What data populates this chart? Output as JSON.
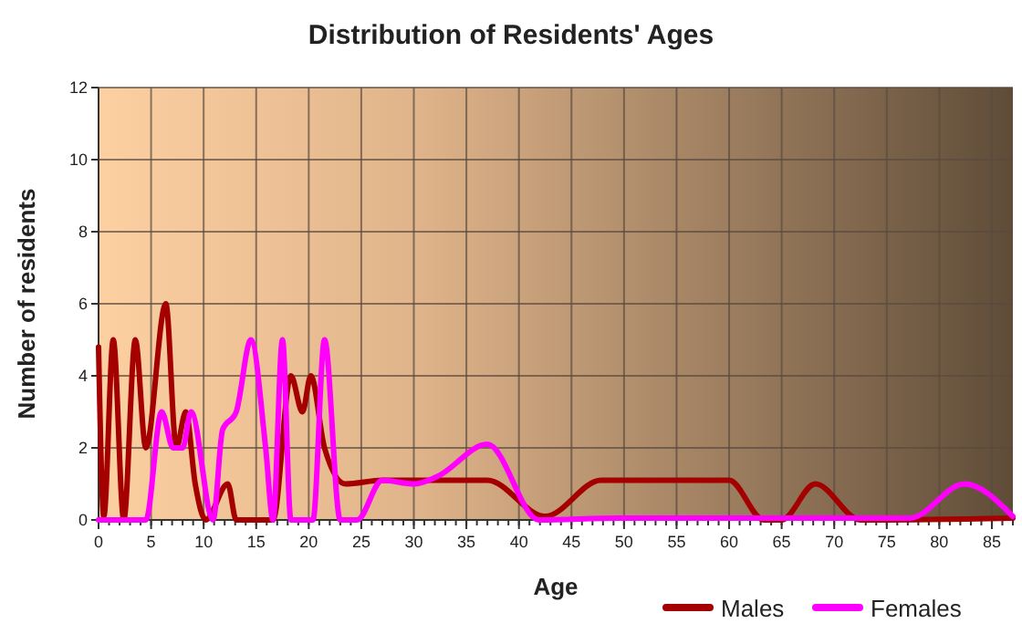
{
  "chart_data": {
    "type": "line",
    "title": "Distribution of Residents' Ages",
    "xlabel": "Age",
    "ylabel": "Number of residents",
    "xlim": [
      0,
      87
    ],
    "xticks": [
      0,
      5,
      10,
      15,
      20,
      25,
      30,
      35,
      40,
      45,
      50,
      55,
      60,
      65,
      70,
      75,
      80,
      85
    ],
    "ylim": [
      0,
      12
    ],
    "yticks": [
      0,
      2,
      4,
      6,
      8,
      10,
      12
    ],
    "grid": true,
    "legend": "bottom",
    "line_style": "solid",
    "marker": "none",
    "series": [
      {
        "name": "Males",
        "color": "#a50000",
        "x": [
          0,
          0.5,
          1.4,
          2.4,
          3.5,
          4.5,
          6.4,
          7.4,
          8.3,
          9.2,
          10.2,
          12.3,
          13.1,
          15.7,
          16.6,
          18.3,
          19.4,
          20.2,
          21.5,
          23.5,
          27,
          32,
          37,
          42.5,
          47.8,
          56.4,
          60,
          63.3,
          65,
          68.2,
          72.5,
          74,
          87
        ],
        "values": [
          4.8,
          0.1,
          5,
          0,
          5,
          2,
          6,
          2,
          3,
          1,
          0,
          1,
          0,
          0,
          0,
          4,
          3,
          4,
          2,
          1,
          1.1,
          1.1,
          1.1,
          0.1,
          1.1,
          1.1,
          1.1,
          0,
          0,
          1,
          0,
          0,
          0.05
        ]
      },
      {
        "name": "Females",
        "color": "#ff00ff",
        "x": [
          0,
          3.6,
          4.5,
          6,
          7.1,
          8,
          8.8,
          10.9,
          11.8,
          13.1,
          14.5,
          15.9,
          16.6,
          17.5,
          18.3,
          20.4,
          21.5,
          23,
          24.6,
          27,
          30,
          32.2,
          37,
          41.9,
          49.5,
          63.3,
          77.2,
          82.4,
          87
        ],
        "values": [
          0,
          0,
          0,
          3,
          2,
          2,
          3,
          0,
          2.5,
          3,
          5,
          2,
          0,
          5,
          0,
          0,
          5,
          0,
          0,
          1.1,
          1,
          1.2,
          2.1,
          0,
          0.05,
          0.05,
          0.05,
          1,
          0.1
        ]
      }
    ]
  }
}
